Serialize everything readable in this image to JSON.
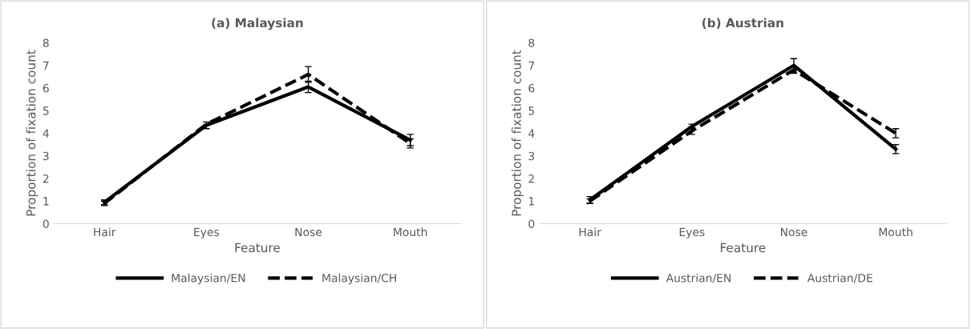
{
  "chart_data": [
    {
      "type": "line",
      "title": "(a) Malaysian",
      "xlabel": "Feature",
      "ylabel": "Proportion of fixation count",
      "categories": [
        "Hair",
        "Eyes",
        "Nose",
        "Mouth"
      ],
      "ylim": [
        0,
        8
      ],
      "yticks": [
        0,
        1,
        2,
        3,
        4,
        5,
        6,
        7,
        8
      ],
      "grid": false,
      "legend": "bottom",
      "series": [
        {
          "name": "Malaysian/EN",
          "color": "#000000",
          "line_style": "solid",
          "values": [
            0.95,
            4.35,
            6.05,
            3.7
          ],
          "errors": [
            0.1,
            0.15,
            0.25,
            0.25
          ]
        },
        {
          "name": "Malaysian/CH",
          "color": "#000000",
          "line_style": "dashed",
          "values": [
            0.9,
            4.4,
            6.6,
            3.55
          ],
          "errors": [
            0.1,
            null,
            0.35,
            0.2
          ]
        }
      ]
    },
    {
      "type": "line",
      "title": "(b) Austrian",
      "xlabel": "Feature",
      "ylabel": "Proportion of fixation count",
      "categories": [
        "Hair",
        "Eyes",
        "Nose",
        "Mouth"
      ],
      "ylim": [
        0,
        8
      ],
      "yticks": [
        0,
        1,
        2,
        3,
        4,
        5,
        6,
        7,
        8
      ],
      "grid": false,
      "legend": "bottom",
      "series": [
        {
          "name": "Austrian/EN",
          "color": "#000000",
          "line_style": "solid",
          "values": [
            1.05,
            4.3,
            7.0,
            3.3
          ],
          "errors": [
            0.15,
            0.1,
            0.3,
            0.2
          ]
        },
        {
          "name": "Austrian/DE",
          "color": "#000000",
          "line_style": "dashed",
          "values": [
            1.0,
            4.1,
            6.8,
            4.0
          ],
          "errors": [
            0.1,
            0.15,
            0.15,
            0.2
          ]
        }
      ]
    }
  ]
}
